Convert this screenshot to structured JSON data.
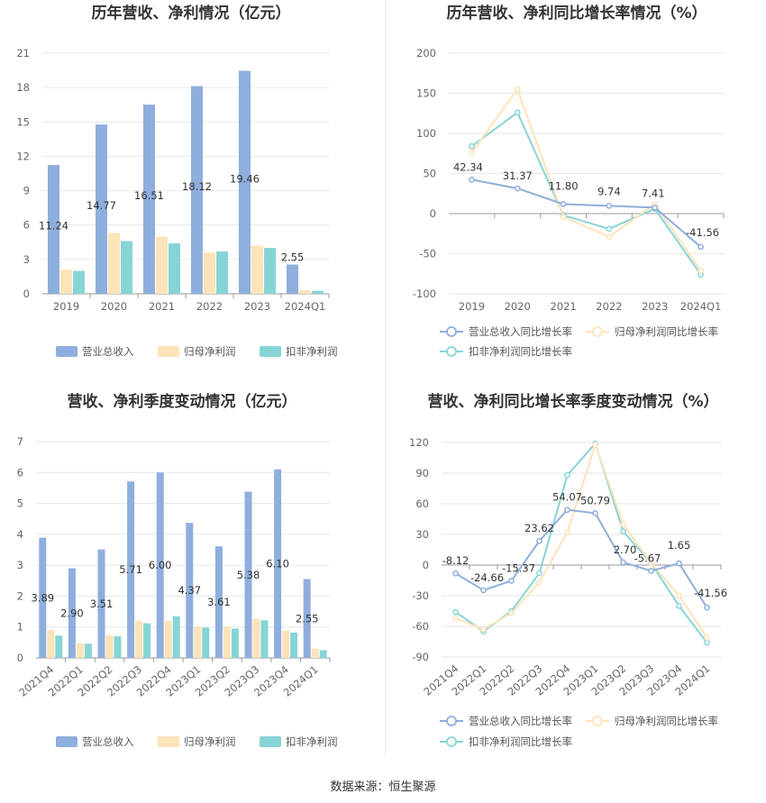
{
  "source_label": "数据来源：恒生聚源",
  "colors": {
    "revenue": "#8eaedd",
    "net_profit": "#fde3b8",
    "deducted_profit": "#87d4d6",
    "revenue_line": "#8eaedd",
    "net_line": "#fde3b8",
    "deducted_line": "#87d4d6"
  },
  "chart_data": [
    {
      "id": "annual-bars",
      "type": "bar",
      "title": "历年营收、净利情况（亿元）",
      "categories": [
        "2019",
        "2020",
        "2021",
        "2022",
        "2023",
        "2024Q1"
      ],
      "ylim": [
        0,
        21
      ],
      "yticks": [
        0,
        3,
        6,
        9,
        12,
        15,
        18,
        21
      ],
      "series": [
        {
          "name": "营业总收入",
          "values": [
            11.24,
            14.77,
            16.51,
            18.12,
            19.46,
            2.55
          ],
          "labels": [
            "11.24",
            "14.77",
            "16.51",
            "18.12",
            "19.46",
            "2.55"
          ]
        },
        {
          "name": "归母净利润",
          "values": [
            2.1,
            5.3,
            5.0,
            3.6,
            4.2,
            0.3
          ]
        },
        {
          "name": "扣非净利润",
          "values": [
            2.0,
            4.6,
            4.4,
            3.7,
            4.0,
            0.25
          ]
        }
      ],
      "grid": true,
      "legend": "bottom"
    },
    {
      "id": "annual-growth",
      "type": "line",
      "title": "历年营收、净利同比增长率情况（%）",
      "categories": [
        "2019",
        "2020",
        "2021",
        "2022",
        "2023",
        "2024Q1"
      ],
      "ylim": [
        -100,
        200
      ],
      "yticks": [
        -100,
        -50,
        0,
        50,
        100,
        150,
        200
      ],
      "series": [
        {
          "name": "营业总收入同比增长率",
          "values": [
            42.34,
            31.37,
            11.8,
            9.74,
            7.41,
            -41.56
          ],
          "labels": [
            "42.34",
            "31.37",
            "11.80",
            "9.74",
            "7.41",
            "-41.56"
          ]
        },
        {
          "name": "归母净利润同比增长率",
          "values": [
            76,
            155,
            -4,
            -29,
            12,
            -71
          ]
        },
        {
          "name": "扣非净利润同比增长率",
          "values": [
            84,
            126,
            -2,
            -19,
            6,
            -76
          ]
        }
      ],
      "grid": true,
      "legend": "bottom"
    },
    {
      "id": "quarterly-bars",
      "type": "bar",
      "title": "营收、净利季度变动情况（亿元）",
      "categories": [
        "2021Q4",
        "2022Q1",
        "2022Q2",
        "2022Q3",
        "2022Q4",
        "2023Q1",
        "2023Q2",
        "2023Q3",
        "2023Q4",
        "2024Q1"
      ],
      "ylim": [
        0,
        7
      ],
      "yticks": [
        0,
        1,
        2,
        3,
        4,
        5,
        6,
        7
      ],
      "series": [
        {
          "name": "营业总收入",
          "values": [
            3.89,
            2.9,
            3.51,
            5.71,
            6.0,
            4.37,
            3.61,
            5.38,
            6.1,
            2.55
          ],
          "labels": [
            "3.89",
            "2.90",
            "3.51",
            "5.71",
            "6.00",
            "4.37",
            "3.61",
            "5.38",
            "6.10",
            "2.55"
          ]
        },
        {
          "name": "归母净利润",
          "values": [
            0.9,
            0.48,
            0.73,
            1.2,
            1.2,
            1.02,
            1.0,
            1.27,
            0.88,
            0.3
          ]
        },
        {
          "name": "扣非净利润",
          "values": [
            0.72,
            0.46,
            0.7,
            1.12,
            1.35,
            0.98,
            0.95,
            1.22,
            0.82,
            0.25
          ]
        }
      ],
      "grid": true,
      "legend": "bottom"
    },
    {
      "id": "quarterly-growth",
      "type": "line",
      "title": "营收、净利同比增长率季度变动情况（%）",
      "categories": [
        "2021Q4",
        "2022Q1",
        "2022Q2",
        "2022Q3",
        "2022Q4",
        "2023Q1",
        "2023Q2",
        "2023Q3",
        "2023Q4",
        "2024Q1"
      ],
      "ylim": [
        -90,
        120
      ],
      "yticks": [
        -90,
        -60,
        -30,
        0,
        30,
        60,
        90,
        120
      ],
      "series": [
        {
          "name": "营业总收入同比增长率",
          "values": [
            -8.12,
            -24.66,
            -15.37,
            23.62,
            54.07,
            50.79,
            2.7,
            -5.67,
            1.65,
            -41.56
          ],
          "labels": [
            "-8.12",
            "-24.66",
            "-15.37",
            "23.62",
            "54.07",
            "50.79",
            "2.70",
            "-5.67",
            "1.65",
            "-41.56"
          ]
        },
        {
          "name": "归母净利润同比增长率",
          "values": [
            -52,
            -63,
            -47,
            -17,
            32,
            118,
            40,
            2,
            -30,
            -71
          ]
        },
        {
          "name": "扣非净利润同比增长率",
          "values": [
            -46,
            -65,
            -45,
            -8,
            88,
            119,
            33,
            2,
            -40,
            -76
          ]
        }
      ],
      "grid": true,
      "legend": "bottom"
    }
  ]
}
